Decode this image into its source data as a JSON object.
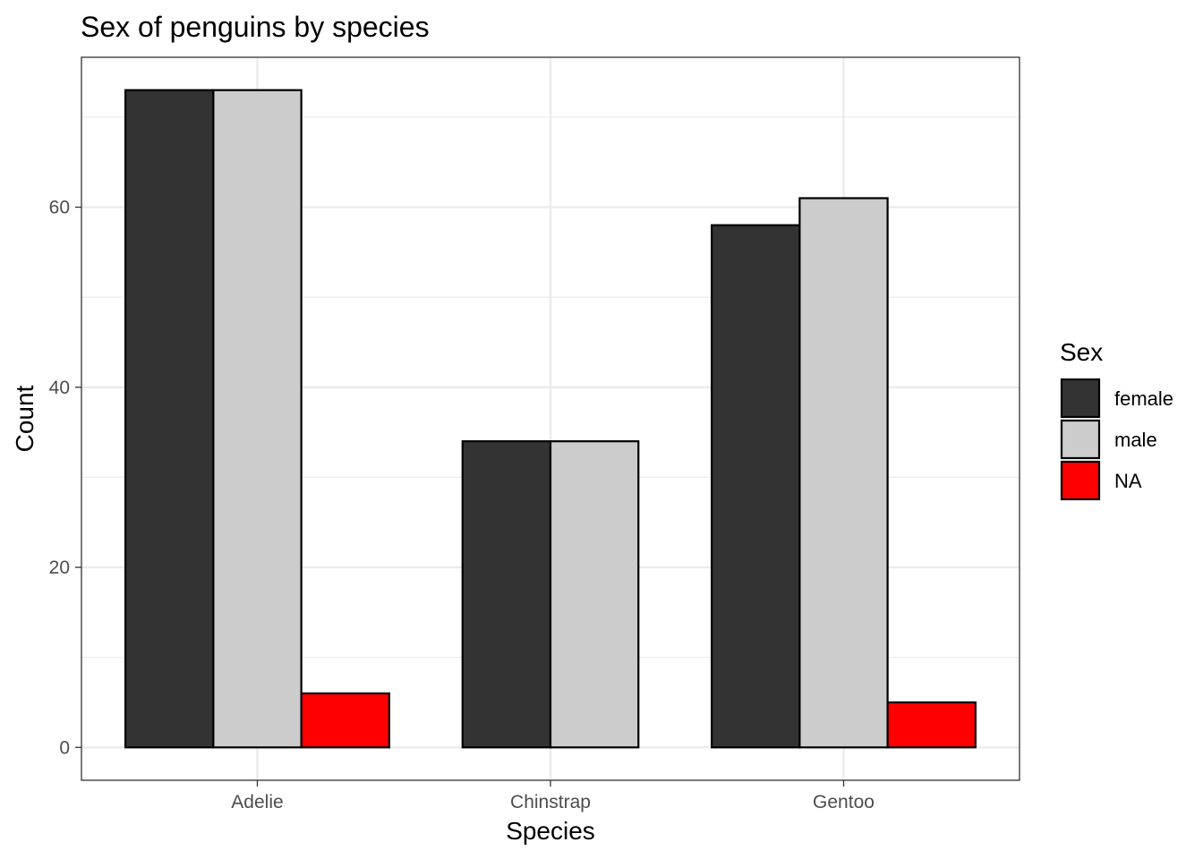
{
  "chart_data": {
    "type": "bar",
    "title": "Sex of penguins by species",
    "xlabel": "Species",
    "ylabel": "Count",
    "categories": [
      "Adelie",
      "Chinstrap",
      "Gentoo"
    ],
    "series": [
      {
        "name": "female",
        "color": "#333333",
        "values": [
          73,
          34,
          58
        ]
      },
      {
        "name": "male",
        "color": "#cccccc",
        "values": [
          73,
          34,
          61
        ]
      },
      {
        "name": "NA",
        "color": "#ff0000",
        "values": [
          6,
          null,
          5
        ]
      }
    ],
    "y_ticks": [
      0,
      20,
      40,
      60
    ],
    "ylim": [
      -3.65,
      76.65
    ],
    "grid": true,
    "legend": {
      "title": "Sex",
      "position": "right"
    }
  }
}
